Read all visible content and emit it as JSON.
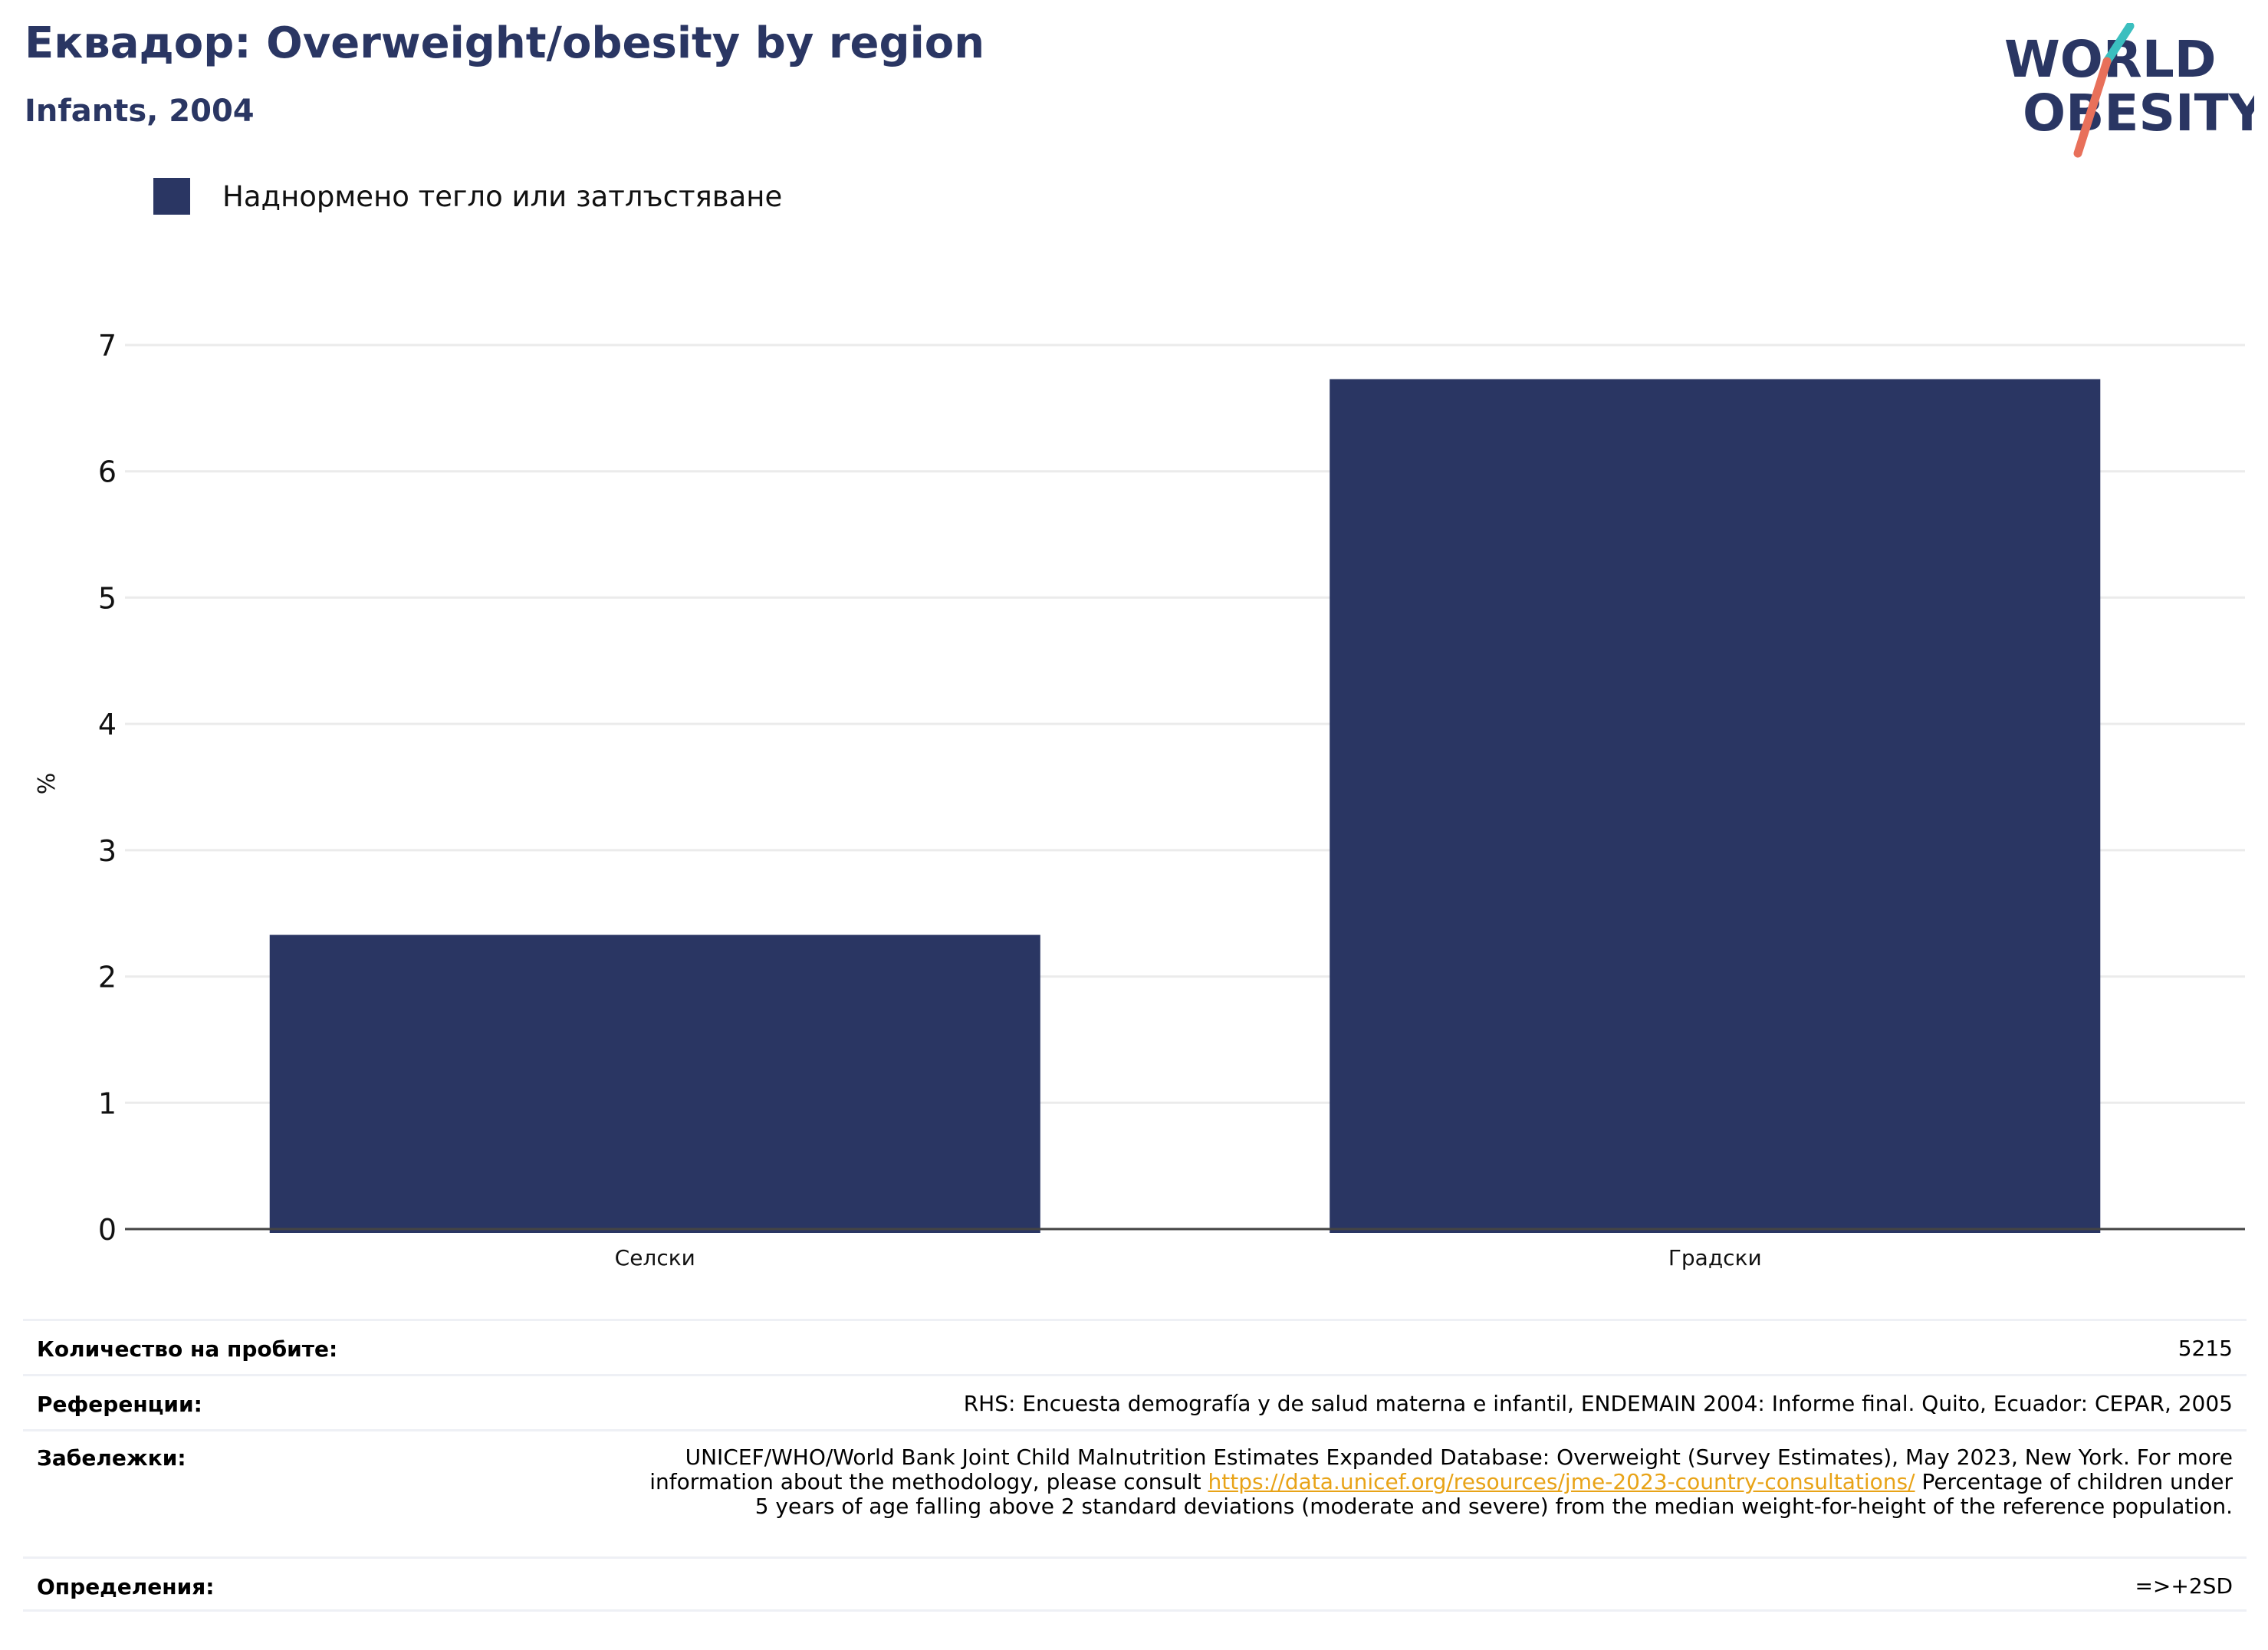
{
  "header": {
    "title": "Еквадор: Overweight/obesity by region",
    "subtitle": "Infants, 2004"
  },
  "logo": {
    "line1": "WORLD",
    "line2": "OBESITY",
    "colors": {
      "text": "#2a3663",
      "accent_teal": "#3bbfbf",
      "accent_coral": "#e8705a"
    }
  },
  "legend": {
    "label": "Наднормено тегло или затлъстяване",
    "color": "#2a3663"
  },
  "chart_data": {
    "type": "bar",
    "categories": [
      "Селски",
      "Градски"
    ],
    "series": [
      {
        "name": "Наднормено тегло или затлъстяване",
        "values": [
          2.33,
          6.73
        ],
        "color": "#2a3663"
      }
    ],
    "ylabel": "%",
    "xlabel": "",
    "ylim": [
      0,
      7
    ],
    "yticks": [
      0,
      1,
      2,
      3,
      4,
      5,
      6,
      7
    ],
    "grid": true,
    "legend_position": "top-left"
  },
  "footer": {
    "sample_label": "Количество на пробите:",
    "sample_value": "5215",
    "references_label": "Референции:",
    "references_value": "RHS: Encuesta demografía y de salud materna e infantil, ENDEMAIN 2004: Informe final. Quito, Ecuador: CEPAR, 2005",
    "notes_label": "Забележки:",
    "notes_part1": "UNICEF/WHO/World Bank Joint Child Malnutrition Estimates Expanded Database: Overweight (Survey Estimates), May 2023, New York. For more information about the methodology, please consult ",
    "notes_link": "https://data.unicef.org/resources/jme-2023-country-consultations/",
    "notes_part2": " Percentage of children under 5 years of age falling above 2 standard deviations (moderate and severe) from the median weight-for-height of the reference population.",
    "definitions_label": "Определения:",
    "definitions_value": "=>+2SD"
  }
}
